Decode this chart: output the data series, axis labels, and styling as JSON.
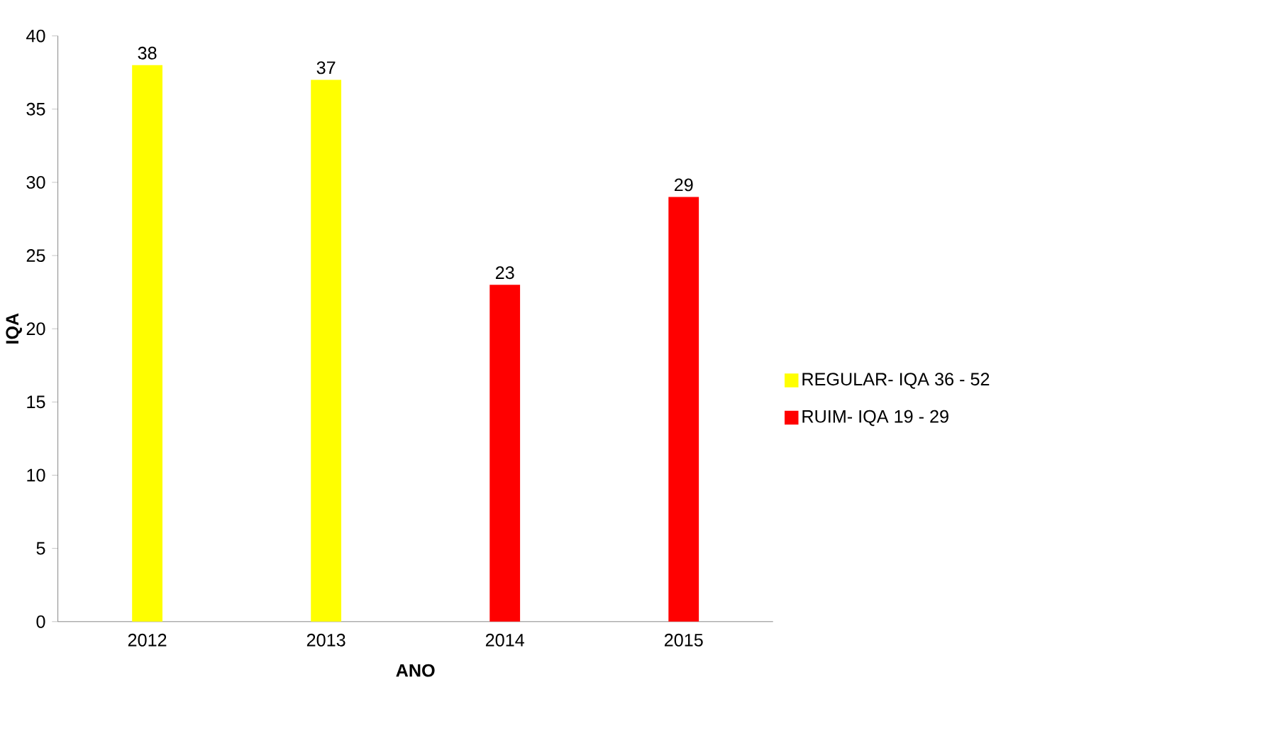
{
  "chart_data": {
    "type": "bar",
    "xlabel": "ANO",
    "ylabel": "IQA",
    "categories": [
      "2012",
      "2013",
      "2014",
      "2015"
    ],
    "series": [
      {
        "name": "REGULAR- IQA 36 - 52",
        "color": "#ffff00",
        "values": [
          38,
          37,
          null,
          null
        ]
      },
      {
        "name": "RUIM- IQA 19 - 29",
        "color": "#ff0000",
        "values": [
          null,
          null,
          23,
          29
        ]
      }
    ],
    "ylim": [
      0,
      40
    ],
    "yticks": [
      0,
      5,
      10,
      15,
      20,
      25,
      30,
      35,
      40
    ],
    "data_labels": true,
    "legend": "right",
    "grid": false
  }
}
